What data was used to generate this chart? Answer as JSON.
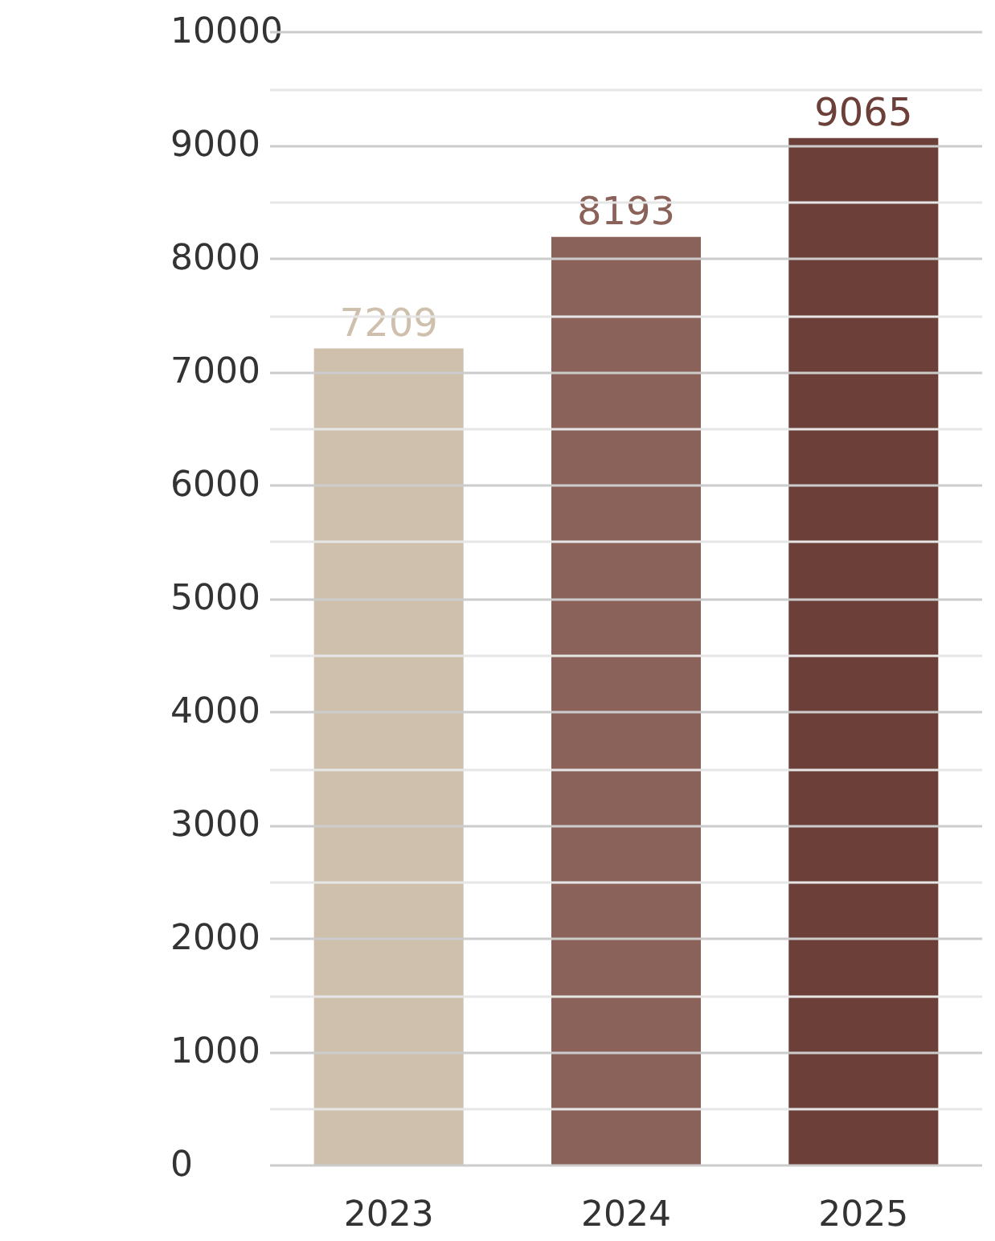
{
  "chart_data": {
    "type": "bar",
    "categories": [
      "2023",
      "2024",
      "2025"
    ],
    "values": [
      7209,
      8193,
      9065
    ],
    "colors": [
      "#cfc0ad",
      "#8a625a",
      "#6c4039"
    ],
    "ylim": [
      0,
      10000
    ],
    "yticks": [
      0,
      {
        "value": 500,
        "label": null
      },
      1000,
      {
        "value": 1500,
        "label": null
      },
      2000,
      {
        "value": 2500,
        "label": null
      },
      3000,
      {
        "value": 3500,
        "label": null
      },
      4000,
      {
        "value": 4500,
        "label": null
      },
      5000,
      {
        "value": 5500,
        "label": null
      },
      6000,
      {
        "value": 6500,
        "label": null
      },
      7000,
      {
        "value": 7500,
        "label": null
      },
      8000,
      {
        "value": 8500,
        "label": null
      },
      9000,
      {
        "value": 9500,
        "label": null
      },
      10000
    ],
    "grid": true,
    "data_labels": true
  }
}
